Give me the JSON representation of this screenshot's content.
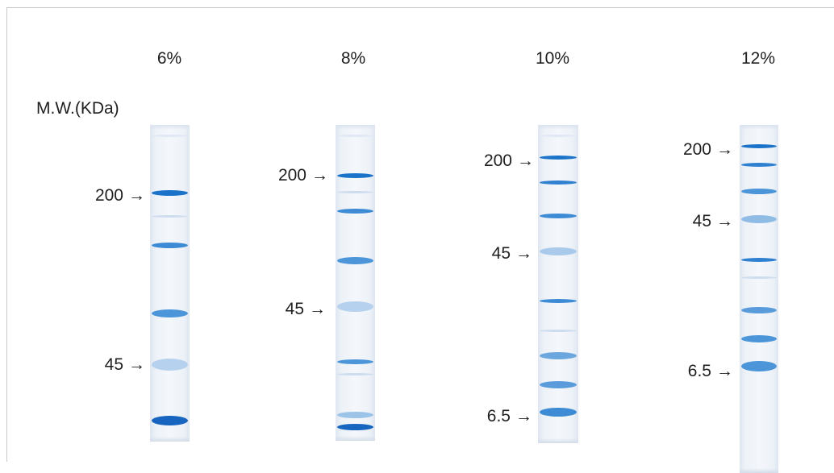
{
  "gels": [
    {
      "label": "6%",
      "markers": [
        {
          "text": "200",
          "arrow": "→"
        },
        {
          "text": "45",
          "arrow": "→"
        }
      ]
    },
    {
      "label": "8%",
      "markers": [
        {
          "text": "200",
          "arrow": "→"
        },
        {
          "text": "45",
          "arrow": "→"
        }
      ]
    },
    {
      "label": "10%",
      "markers": [
        {
          "text": "200",
          "arrow": "→"
        },
        {
          "text": "45",
          "arrow": "→"
        },
        {
          "text": "6.5",
          "arrow": "→"
        }
      ]
    },
    {
      "label": "12%",
      "markers": [
        {
          "text": "200",
          "arrow": "→"
        },
        {
          "text": "45",
          "arrow": "→"
        },
        {
          "text": "6.5",
          "arrow": "→"
        }
      ]
    }
  ],
  "mw_title": "M.W.(KDa)",
  "colors": {
    "band_strong": "#1a73c9",
    "band_medium": "#4b95d8",
    "band_light": "#9cc3e8",
    "lane_background": "#eef3f9"
  }
}
